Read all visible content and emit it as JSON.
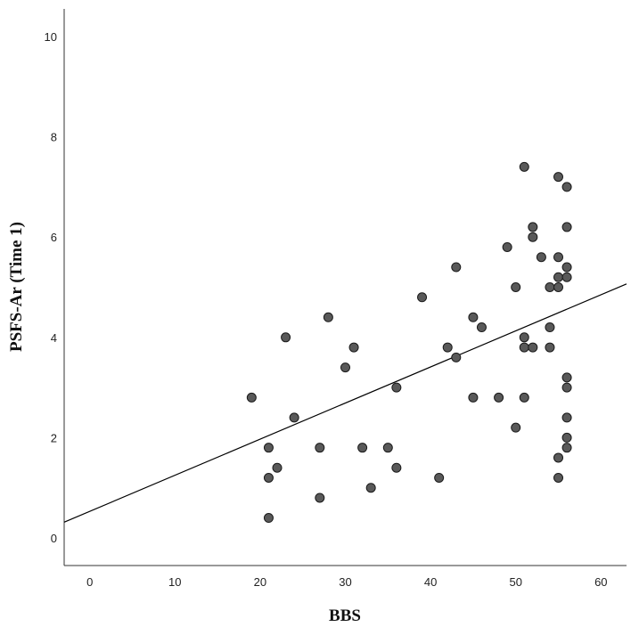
{
  "chart_data": {
    "type": "scatter",
    "xlabel": "BBS",
    "ylabel": "PSFS-Ar (Time 1)",
    "xlim": [
      -3,
      63
    ],
    "ylim": [
      -0.55,
      10.55
    ],
    "x_ticks": [
      0,
      10,
      20,
      30,
      40,
      50,
      60
    ],
    "y_ticks": [
      0,
      2,
      4,
      6,
      8,
      10
    ],
    "grid": false,
    "point_color": "#595959",
    "point_edge_color": "#1a1a1a",
    "line_color": "#000000",
    "fit_line": {
      "intercept": 0.53,
      "slope": 0.072
    },
    "points": [
      {
        "x": 19,
        "y": 2.8
      },
      {
        "x": 21,
        "y": 1.8
      },
      {
        "x": 21,
        "y": 1.2
      },
      {
        "x": 21,
        "y": 0.4
      },
      {
        "x": 22,
        "y": 1.4
      },
      {
        "x": 23,
        "y": 4.0
      },
      {
        "x": 24,
        "y": 2.4
      },
      {
        "x": 27,
        "y": 1.8
      },
      {
        "x": 27,
        "y": 0.8
      },
      {
        "x": 28,
        "y": 4.4
      },
      {
        "x": 30,
        "y": 3.4
      },
      {
        "x": 31,
        "y": 3.8
      },
      {
        "x": 32,
        "y": 1.8
      },
      {
        "x": 33,
        "y": 1.0
      },
      {
        "x": 35,
        "y": 1.8
      },
      {
        "x": 36,
        "y": 3.0
      },
      {
        "x": 36,
        "y": 1.4
      },
      {
        "x": 39,
        "y": 4.8
      },
      {
        "x": 41,
        "y": 1.2
      },
      {
        "x": 42,
        "y": 3.8
      },
      {
        "x": 43,
        "y": 5.4
      },
      {
        "x": 43,
        "y": 3.6
      },
      {
        "x": 45,
        "y": 4.4
      },
      {
        "x": 45,
        "y": 2.8
      },
      {
        "x": 46,
        "y": 4.2
      },
      {
        "x": 48,
        "y": 2.8
      },
      {
        "x": 49,
        "y": 5.8
      },
      {
        "x": 50,
        "y": 5.0
      },
      {
        "x": 50,
        "y": 2.2
      },
      {
        "x": 51,
        "y": 7.4
      },
      {
        "x": 51,
        "y": 4.0
      },
      {
        "x": 51,
        "y": 3.8
      },
      {
        "x": 51,
        "y": 2.8
      },
      {
        "x": 52,
        "y": 6.2
      },
      {
        "x": 52,
        "y": 6.0
      },
      {
        "x": 52,
        "y": 3.8
      },
      {
        "x": 53,
        "y": 5.6
      },
      {
        "x": 54,
        "y": 5.0
      },
      {
        "x": 54,
        "y": 4.2
      },
      {
        "x": 54,
        "y": 3.8
      },
      {
        "x": 55,
        "y": 7.2
      },
      {
        "x": 55,
        "y": 5.6
      },
      {
        "x": 55,
        "y": 5.2
      },
      {
        "x": 55,
        "y": 5.0
      },
      {
        "x": 55,
        "y": 1.6
      },
      {
        "x": 55,
        "y": 1.2
      },
      {
        "x": 56,
        "y": 7.0
      },
      {
        "x": 56,
        "y": 6.2
      },
      {
        "x": 56,
        "y": 5.4
      },
      {
        "x": 56,
        "y": 5.2
      },
      {
        "x": 56,
        "y": 3.2
      },
      {
        "x": 56,
        "y": 3.0
      },
      {
        "x": 56,
        "y": 2.4
      },
      {
        "x": 56,
        "y": 2.0
      },
      {
        "x": 56,
        "y": 1.8
      }
    ]
  }
}
